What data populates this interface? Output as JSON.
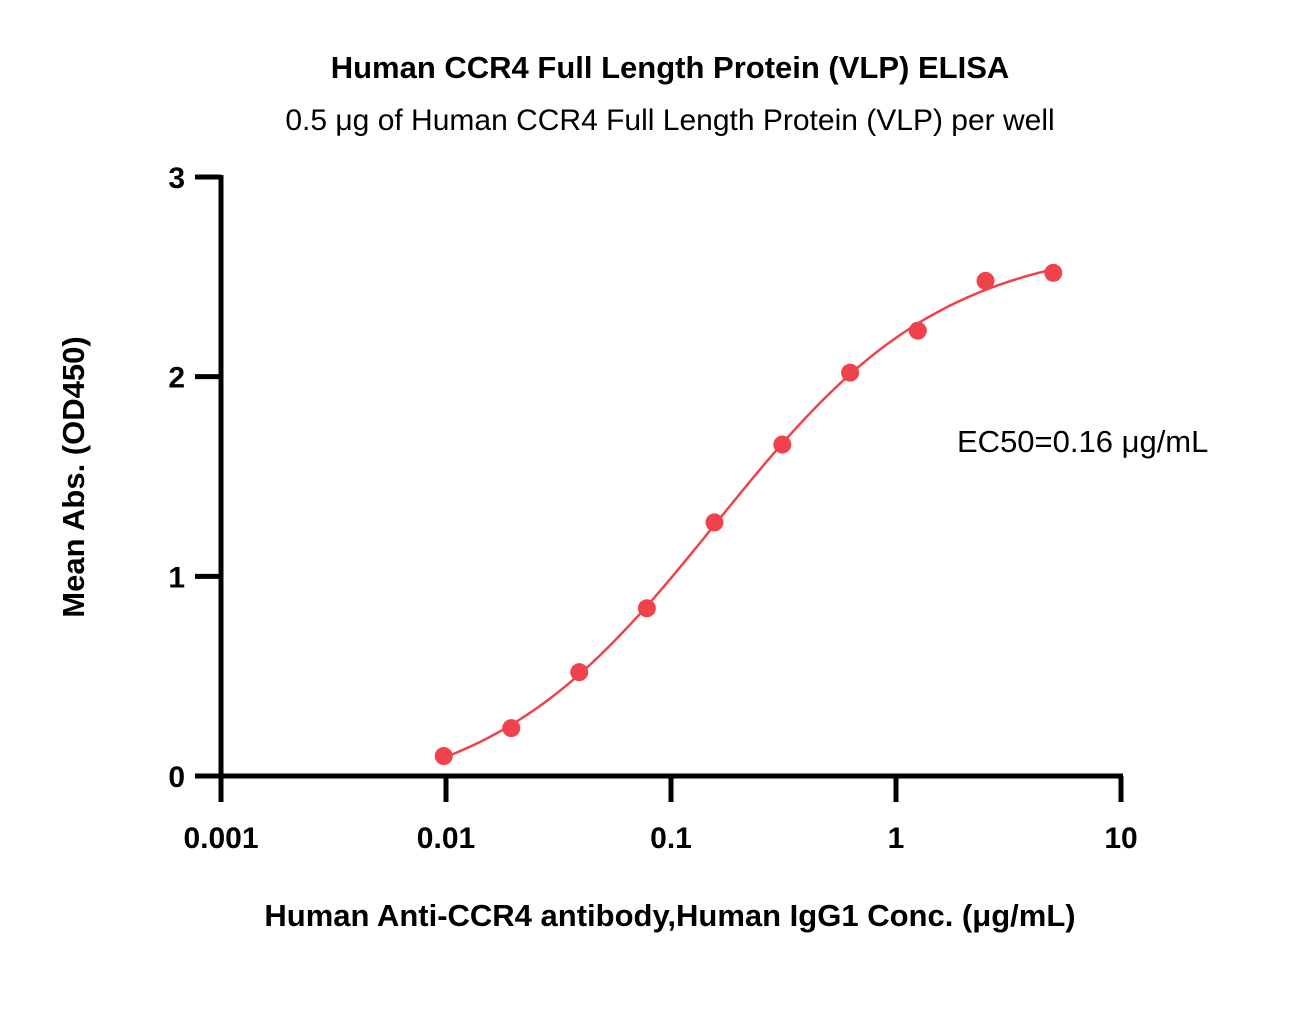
{
  "chart_data": {
    "type": "scatter",
    "title": "Human CCR4 Full Length Protein (VLP) ELISA",
    "subtitle": "0.5 μg of Human CCR4 Full Length Protein (VLP) per well",
    "xlabel": "Human Anti-CCR4 antibody,Human IgG1 Conc. (μg/mL)",
    "ylabel": "Mean Abs. (OD450)",
    "xscale": "log",
    "xlim": [
      0.001,
      10
    ],
    "ylim": [
      0,
      3
    ],
    "xticks": [
      {
        "value": 0.001,
        "label": "0.001"
      },
      {
        "value": 0.01,
        "label": "0.01"
      },
      {
        "value": 0.1,
        "label": "0.1"
      },
      {
        "value": 1,
        "label": "1"
      },
      {
        "value": 10,
        "label": "10"
      }
    ],
    "yticks": [
      {
        "value": 0,
        "label": "0"
      },
      {
        "value": 1,
        "label": "1"
      },
      {
        "value": 2,
        "label": "2"
      },
      {
        "value": 3,
        "label": "3"
      }
    ],
    "grid": false,
    "series": [
      {
        "color": "#f0424a",
        "x": [
          0.00977,
          0.0195,
          0.0391,
          0.0781,
          0.156,
          0.3125,
          0.625,
          1.25,
          2.5,
          5
        ],
        "y": [
          0.1,
          0.24,
          0.52,
          0.84,
          1.27,
          1.66,
          2.02,
          2.23,
          2.48,
          2.52
        ],
        "fit": "four-parameter logistic"
      }
    ],
    "annotation": "EC50=0.16 μg/mL"
  }
}
